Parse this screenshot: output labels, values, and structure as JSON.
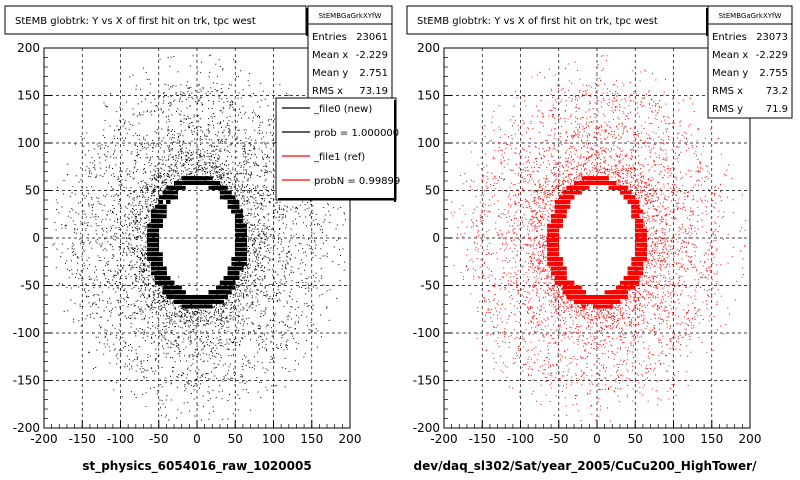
{
  "colors": {
    "background": "#ffffff",
    "frame": "#000000",
    "grid": "#000000",
    "new_hist": "#000000",
    "ref_hist": "#ff0000"
  },
  "chart_data": [
    {
      "type": "scatter",
      "title": "StEMB globtrk: Y vs X of first hit on trk, tpc west",
      "xlabel": "st_physics_6054016_raw_1020005",
      "ylabel": "",
      "xlim": [
        -200,
        200
      ],
      "ylim": [
        -200,
        200
      ],
      "x_ticks": [
        -200,
        -150,
        -100,
        -50,
        0,
        50,
        100,
        150,
        200
      ],
      "y_ticks": [
        -200,
        -150,
        -100,
        -50,
        0,
        50,
        100,
        150,
        200
      ],
      "grid": true,
      "point_color": "#000000",
      "stats": {
        "name": "StEMBGaGrkXYfW",
        "rows": [
          {
            "label": "Entries",
            "value": "23061"
          },
          {
            "label": "Mean x",
            "value": "-2.229"
          },
          {
            "label": "Mean y",
            "value": "2.751"
          },
          {
            "label": "RMS x",
            "value": "73.19"
          }
        ]
      },
      "legend": {
        "position": "top-right",
        "entries": [
          {
            "label": "_file0 (new)",
            "color": "#000000"
          },
          {
            "label": "prob = 1.000000",
            "color": "#000000"
          },
          {
            "label": "_file1 (ref)",
            "color": "#ff0000"
          },
          {
            "label": "probN = 0.99899",
            "color": "#ff0000"
          }
        ]
      },
      "structure": {
        "inner_hole": {
          "x_range": [
            -50,
            50
          ],
          "y_range": [
            -55,
            60
          ]
        },
        "dense_band": {
          "x_range": [
            -65,
            60
          ],
          "y_range": [
            -70,
            65
          ]
        },
        "ring_radii": [
          85,
          115,
          150
        ],
        "outer_limit": 200
      }
    },
    {
      "type": "scatter",
      "title": "StEMB globtrk: Y vs X of first hit on trk, tpc west",
      "xlabel": "dev/daq_sl302/Sat/year_2005/CuCu200_HighTower/",
      "ylabel": "",
      "xlim": [
        -200,
        200
      ],
      "ylim": [
        -200,
        200
      ],
      "x_ticks": [
        -200,
        -150,
        -100,
        -50,
        0,
        50,
        100,
        150,
        200
      ],
      "y_ticks": [
        -200,
        -150,
        -100,
        -50,
        0,
        50,
        100,
        150,
        200
      ],
      "grid": true,
      "point_color": "#ff0000",
      "stats": {
        "name": "StEMBGaGrkXYfW",
        "rows": [
          {
            "label": "Entries",
            "value": "23073"
          },
          {
            "label": "Mean x",
            "value": "-2.229"
          },
          {
            "label": "Mean y",
            "value": "2.755"
          },
          {
            "label": "RMS x",
            "value": "73.2"
          },
          {
            "label": "RMS y",
            "value": "71.9"
          }
        ]
      },
      "structure": {
        "inner_hole": {
          "x_range": [
            -50,
            50
          ],
          "y_range": [
            -55,
            60
          ]
        },
        "dense_band": {
          "x_range": [
            -65,
            60
          ],
          "y_range": [
            -70,
            65
          ]
        },
        "ring_radii": [
          85,
          115,
          150
        ],
        "outer_limit": 200
      }
    }
  ]
}
